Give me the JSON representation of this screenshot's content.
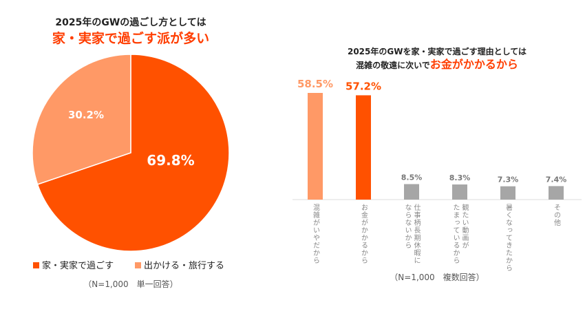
{
  "colors": {
    "main": "#FF5100",
    "light": "#FF9966",
    "gray": "#A6A6A6",
    "title_accent": "#FF3D00"
  },
  "chart_data": [
    {
      "type": "pie",
      "title": "2025年のGWの過ごし方としては",
      "subtitle": "家・実家で過ごす派が多い",
      "slices": [
        {
          "label": "家・実家で過ごす",
          "value": 69.8,
          "label_text": "69.8%"
        },
        {
          "label": "出かける・旅行する",
          "value": 30.2,
          "label_text": "30.2%"
        }
      ],
      "note": "（N=1,000　単一回答）",
      "legend_position": "bottom"
    },
    {
      "type": "bar",
      "title": "2025年のGWを家・実家で過ごす理由としては",
      "subtitle_prefix": "混雑の敬遠に次いで",
      "subtitle_accent": "お金がかかるから",
      "categories": [
        [
          "混雑がいやだから"
        ],
        [
          "お金がかかるから"
        ],
        [
          "仕事柄長期休暇に",
          "ならないから"
        ],
        [
          "観たい動画が",
          "たまっているから"
        ],
        [
          "暑くなってきたから"
        ],
        [
          "その他"
        ]
      ],
      "values": [
        58.5,
        57.2,
        8.5,
        8.3,
        7.3,
        7.4
      ],
      "value_labels": [
        "58.5%",
        "57.2%",
        "8.5%",
        "8.3%",
        "7.3%",
        "7.4%"
      ],
      "ylim": [
        0,
        60
      ],
      "note": "（N=1,000　複数回答）"
    }
  ]
}
